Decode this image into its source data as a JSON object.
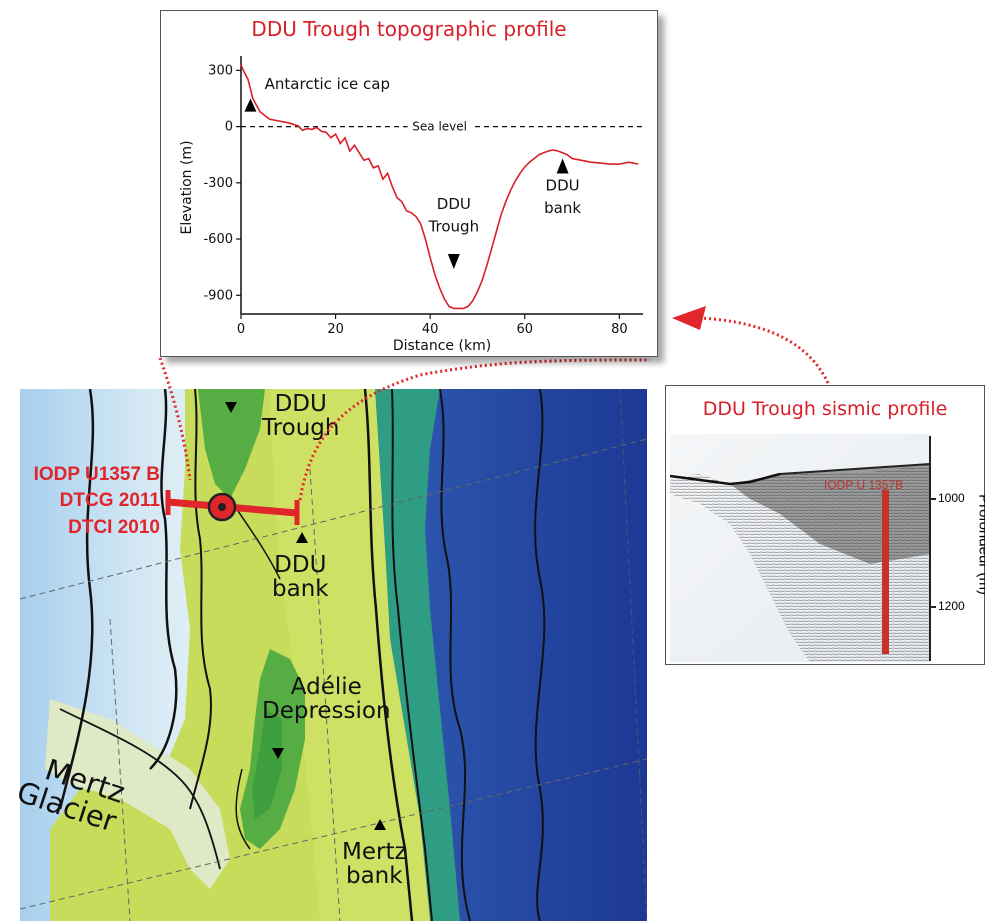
{
  "topo_profile": {
    "title": "DDU Trough topographic profile",
    "xlabel": "Distance (km)",
    "ylabel": "Elevation (m)",
    "sea_level_label": "Sea level",
    "annotations": {
      "ice_cap": "Antarctic ice cap",
      "trough_line1": "DDU",
      "trough_line2": "Trough",
      "bank_line1": "DDU",
      "bank_line2": "bank"
    }
  },
  "chart_data": {
    "type": "line",
    "title": "DDU Trough topographic profile",
    "xlabel": "Distance (km)",
    "ylabel": "Elevation (m)",
    "xlim": [
      0,
      85
    ],
    "ylim": [
      -1000,
      350
    ],
    "x_ticks": [
      0,
      20,
      40,
      60,
      80
    ],
    "y_ticks": [
      300,
      0,
      -300,
      -600,
      -900
    ],
    "series": [
      {
        "color": "#d8202a",
        "x": [
          0,
          0.5,
          1.5,
          2.5,
          4,
          6,
          8,
          10,
          12,
          13,
          14,
          15,
          16,
          17,
          18,
          19,
          20,
          21,
          22,
          23,
          24,
          25,
          26,
          27,
          28,
          29,
          30,
          31,
          32,
          33,
          34,
          35,
          36,
          37,
          38,
          39,
          40,
          41,
          42,
          43,
          44,
          45,
          46,
          47,
          48,
          49,
          50,
          51,
          52,
          53,
          54,
          55,
          56,
          57,
          58,
          59,
          60,
          61,
          62,
          63,
          64,
          65,
          66,
          67,
          68,
          69,
          70,
          72,
          74,
          76,
          78,
          80,
          82,
          84
        ],
        "y": [
          330,
          300,
          250,
          150,
          80,
          40,
          30,
          20,
          5,
          -20,
          -10,
          -15,
          -5,
          -25,
          -30,
          -60,
          -40,
          -90,
          -60,
          -130,
          -100,
          -140,
          -180,
          -170,
          -220,
          -210,
          -280,
          -250,
          -320,
          -380,
          -400,
          -450,
          -460,
          -480,
          -520,
          -600,
          -700,
          -790,
          -860,
          -920,
          -960,
          -970,
          -970,
          -970,
          -960,
          -930,
          -880,
          -820,
          -740,
          -650,
          -560,
          -470,
          -400,
          -340,
          -290,
          -250,
          -215,
          -190,
          -170,
          -150,
          -140,
          -130,
          -125,
          -130,
          -140,
          -150,
          -170,
          -180,
          -190,
          -195,
          -200,
          -200,
          -190,
          -200
        ]
      }
    ]
  },
  "seismic_profile": {
    "title": "DDU Trough sismic profile",
    "site_label": "IODP U 1357B",
    "axis_label": "Profondeur (m)",
    "depth_ticks": [
      "1000",
      "1200"
    ]
  },
  "map": {
    "site_labels": [
      "IODP U1357 B",
      "DTCG 2011",
      "DTCI 2010"
    ],
    "features": {
      "ddu_trough_1": "DDU",
      "ddu_trough_2": "Trough",
      "ddu_bank_1": "DDU",
      "ddu_bank_2": "bank",
      "adelie_1": "Adélie",
      "adelie_2": "Depression",
      "mertz_glacier_1": "Mertz",
      "mertz_glacier_2": "Glacier",
      "mertz_bank_1": "Mertz",
      "mertz_bank_2": "bank"
    },
    "colors": {
      "shelf": "#c6dc5a",
      "deep_trough": "#3f9e3d",
      "ocean_deep": "#1f3f9a",
      "ocean_light": "#c9e3f2",
      "profile_line": "#e0262b"
    }
  }
}
